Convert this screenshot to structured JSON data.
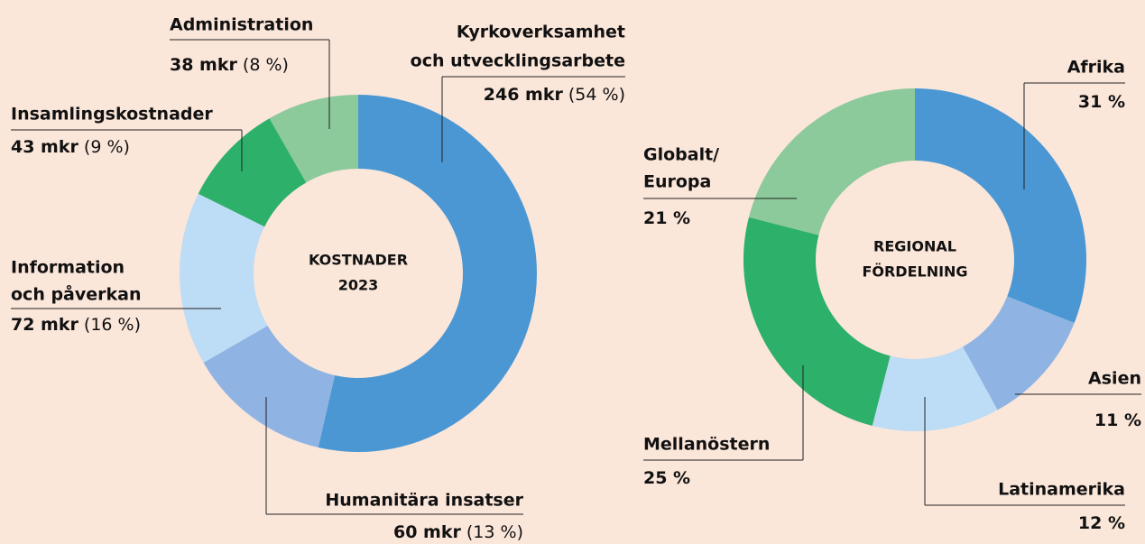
{
  "chart_data": [
    {
      "type": "donut",
      "title": [
        "KOSTNADER",
        "2023"
      ],
      "categories": [
        [
          "Kyrkoverksamhet",
          "och utvecklingsarbete"
        ],
        [
          "Humanitära insatser"
        ],
        [
          "Information",
          "och påverkan"
        ],
        [
          "Insamlingskostnader"
        ],
        [
          "Administration"
        ]
      ],
      "values": [
        246,
        60,
        72,
        43,
        38
      ],
      "value_labels": [
        "246 mkr",
        "60 mkr",
        "72 mkr",
        "43 mkr",
        "38 mkr"
      ],
      "percents": [
        54,
        13,
        16,
        9,
        8
      ],
      "percent_labels": [
        "(54 %)",
        "(13 %)",
        "(16 %)",
        "(9 %)",
        "(8 %)"
      ],
      "colors": [
        "#4a97d4",
        "#8fb4e3",
        "#bddcf5",
        "#2db06a",
        "#8cc99b"
      ]
    },
    {
      "type": "donut",
      "title": [
        "REGIONAL",
        "FÖRDELNING"
      ],
      "categories": [
        [
          "Afrika"
        ],
        [
          "Asien"
        ],
        [
          "Latinamerika"
        ],
        [
          "Mellanöstern"
        ],
        [
          "Globalt/",
          "Europa"
        ]
      ],
      "values": [
        31,
        11,
        12,
        25,
        21
      ],
      "value_labels": [
        "31 %",
        "11 %",
        "12 %",
        "25 %",
        "21 %"
      ],
      "colors": [
        "#4a97d4",
        "#8fb4e3",
        "#bddcf5",
        "#2db06a",
        "#8cc99b"
      ]
    }
  ]
}
